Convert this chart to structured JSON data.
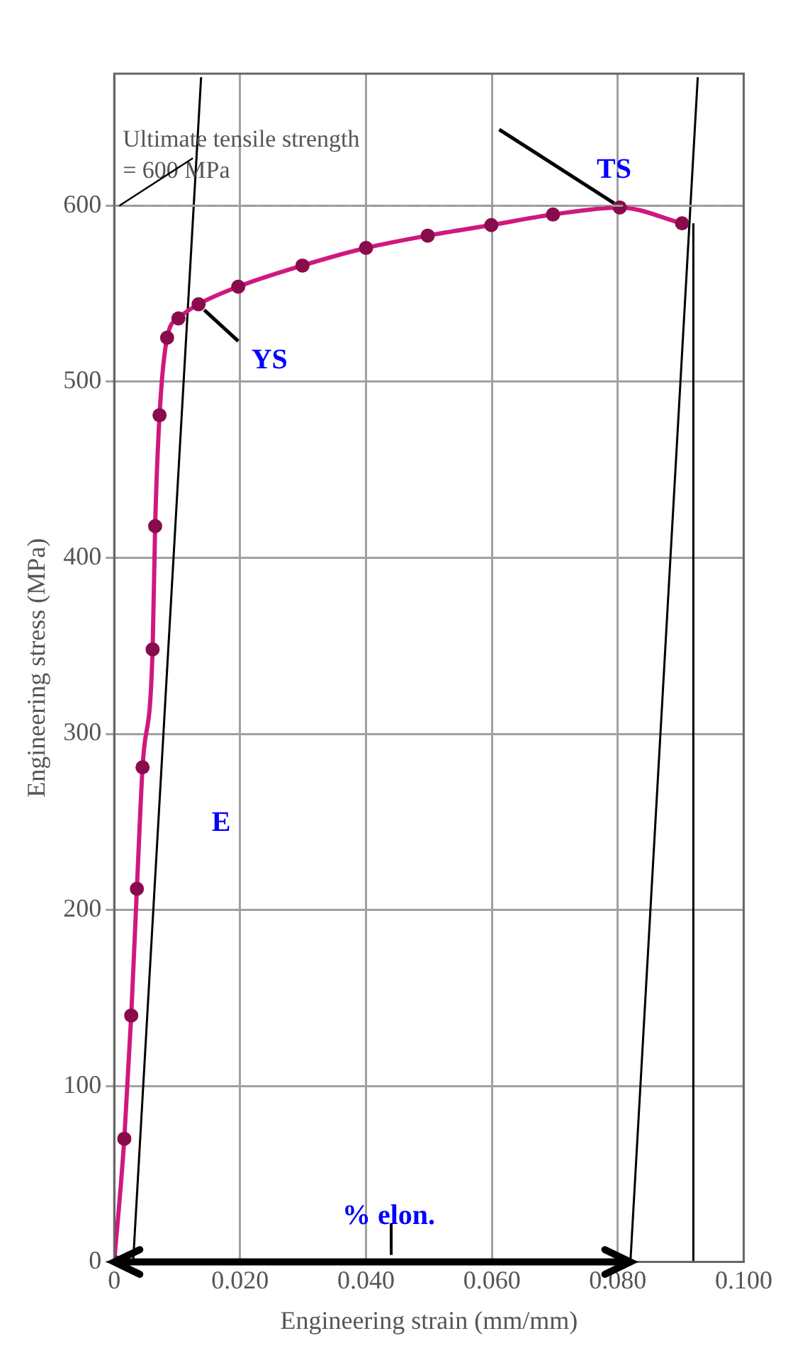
{
  "chart_data": {
    "type": "line",
    "xlabel": "Engineering strain (mm/mm)",
    "ylabel": "Engineering stress (MPa)",
    "xlim": [
      0,
      0.1
    ],
    "ylim": [
      0,
      675
    ],
    "xticks": [
      0,
      {
        "value": 0.02,
        "label": "0.020"
      },
      {
        "value": 0.04,
        "label": "0.040"
      },
      {
        "value": 0.06,
        "label": "0.060"
      },
      {
        "value": 0.08,
        "label": "0.080"
      },
      {
        "value": 0.1,
        "label": "0.100"
      }
    ],
    "yticks": [
      0,
      100,
      200,
      300,
      400,
      500,
      600
    ],
    "grid": true,
    "legend": false,
    "marker": "circle",
    "series": [
      {
        "color": "#d0187e",
        "x": [
          0,
          0.0016,
          0.0027,
          0.0036,
          0.0045,
          0.0061,
          0.0065,
          0.0072,
          0.0084,
          0.0102,
          0.0134,
          0.0197,
          0.0299,
          0.04,
          0.0498,
          0.0599,
          0.0697,
          0.0803,
          0.0902
        ],
        "values": [
          0,
          70,
          140,
          212,
          281,
          348,
          418,
          481,
          525,
          536,
          544,
          554,
          566,
          576,
          583,
          589,
          595,
          599,
          590
        ]
      },
      {
        "color": "#000000",
        "marker": "none",
        "x": [
          0.003,
          0.0138
        ],
        "values": [
          0,
          673
        ]
      },
      {
        "color": "#000000",
        "marker": "none",
        "x": [
          0.082,
          0.0927
        ],
        "values": [
          0,
          673
        ]
      },
      {
        "color": "#000000",
        "marker": "none",
        "x": [
          0.092,
          0.092
        ],
        "values": [
          0,
          590
        ]
      }
    ],
    "ref_lines": [
      {
        "axis": "y",
        "value": 600,
        "label": "Ultimate tensile strength\n= 600 MPa",
        "color": "#999999",
        "line_style": "dashed"
      }
    ],
    "annotations": [
      {
        "text": "TS",
        "x": 0.0803,
        "y": 599
      },
      {
        "text": "YS",
        "x": 0.0134,
        "y": 544
      },
      "E",
      "% elon."
    ]
  }
}
